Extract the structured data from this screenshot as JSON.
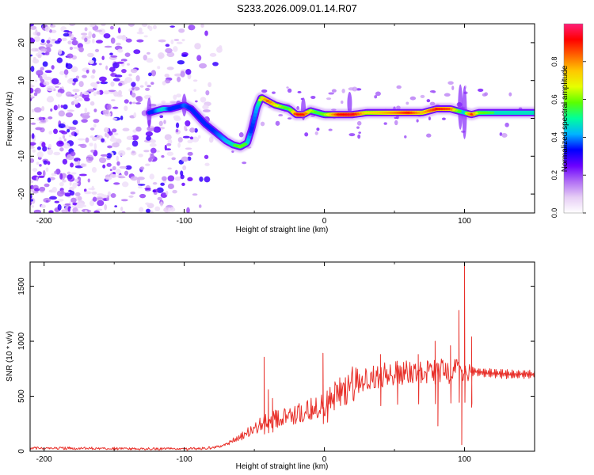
{
  "title": "S233.2026.009.01.14.R07",
  "chart_data": [
    {
      "type": "heatmap",
      "title": "S233.2026.009.01.14.R07",
      "xlabel": "Height of straight line (km)",
      "ylabel": "Frequency (Hz)",
      "xlim": [
        -210,
        150
      ],
      "ylim": [
        -25,
        25
      ],
      "xticks": [
        -200,
        -100,
        0,
        100
      ],
      "yticks": [
        -20,
        -10,
        0,
        10,
        20
      ],
      "colorbar": {
        "label": "Normalized spectral amplitude",
        "range": [
          0.0,
          1.0
        ],
        "ticks": [
          "0.0",
          "0.2",
          "0.4",
          "0.6",
          "0.8"
        ],
        "colormap": [
          "#ffffff",
          "#e6cdf5",
          "#b06df5",
          "#6b00ff",
          "#0000ff",
          "#00b4ff",
          "#00ff9c",
          "#5aff00",
          "#e6ff00",
          "#ffc800",
          "#ff6400",
          "#ff0000",
          "#ff1e78"
        ]
      },
      "ridge": {
        "x": [
          -125,
          -120,
          -115,
          -110,
          -105,
          -100,
          -95,
          -90,
          -85,
          -80,
          -75,
          -70,
          -65,
          -60,
          -55,
          -52,
          -48,
          -45,
          -40,
          -35,
          -30,
          -25,
          -20,
          -15,
          -10,
          -5,
          0,
          10,
          20,
          30,
          40,
          50,
          60,
          70,
          80,
          90,
          95,
          100,
          105,
          110,
          120,
          130,
          140,
          150
        ],
        "freq": [
          1.5,
          2.0,
          2.5,
          2.5,
          3.0,
          3.5,
          2.5,
          0.5,
          -1.5,
          -3.0,
          -4.5,
          -6.0,
          -7.0,
          -7.5,
          -6.5,
          -3.0,
          3.0,
          5.5,
          4.5,
          3.5,
          3.0,
          2.5,
          1.0,
          1.0,
          2.0,
          1.5,
          1.0,
          1.0,
          1.0,
          1.5,
          1.5,
          1.5,
          1.5,
          1.5,
          2.5,
          2.5,
          2.0,
          1.5,
          1.0,
          1.5,
          1.5,
          1.5,
          1.5,
          1.5
        ],
        "amplitude": [
          0.3,
          0.45,
          0.55,
          0.4,
          0.35,
          0.45,
          0.4,
          0.35,
          0.35,
          0.4,
          0.45,
          0.5,
          0.55,
          0.6,
          0.55,
          0.4,
          0.5,
          0.7,
          0.85,
          0.7,
          0.6,
          0.55,
          0.9,
          0.9,
          0.65,
          0.55,
          0.6,
          0.9,
          0.95,
          0.7,
          0.75,
          0.8,
          0.9,
          0.75,
          0.9,
          0.85,
          0.6,
          0.5,
          0.9,
          0.6,
          0.55,
          0.55,
          0.55,
          0.55
        ]
      },
      "noise_region_km": [
        -210,
        -70
      ],
      "noise_amplitude": [
        0.05,
        0.3
      ]
    },
    {
      "type": "line",
      "xlabel": "Height of straight line (km)",
      "ylabel": "SNR (10 * v/v)",
      "xlim": [
        -210,
        150
      ],
      "ylim": [
        0,
        1720
      ],
      "xticks": [
        -200,
        -100,
        0,
        100
      ],
      "yticks": [
        0,
        500,
        1000,
        1500
      ],
      "color": "#e8302a",
      "envelope": {
        "x": [
          -210,
          -150,
          -100,
          -80,
          -70,
          -60,
          -55,
          -50,
          -45,
          -40,
          -30,
          -20,
          -10,
          0,
          10,
          20,
          30,
          40,
          50,
          60,
          70,
          80,
          90,
          95,
          100,
          103,
          110,
          120,
          130,
          140,
          150
        ],
        "y": [
          30,
          25,
          20,
          30,
          60,
          130,
          170,
          210,
          250,
          280,
          310,
          340,
          380,
          420,
          520,
          600,
          650,
          690,
          710,
          710,
          720,
          720,
          730,
          740,
          740,
          730,
          720,
          710,
          700,
          700,
          700
        ]
      },
      "spikes": [
        {
          "x": -43,
          "y": 855
        },
        {
          "x": -40,
          "y": 560
        },
        {
          "x": -37,
          "y": 480
        },
        {
          "x": -1,
          "y": 890
        },
        {
          "x": 2,
          "y": 510
        },
        {
          "x": 40,
          "y": 880
        },
        {
          "x": 52,
          "y": 820
        },
        {
          "x": 67,
          "y": 880
        },
        {
          "x": 79,
          "y": 1000
        },
        {
          "x": 90,
          "y": 960
        },
        {
          "x": 96,
          "y": 1280
        },
        {
          "x": 100,
          "y": 1720
        },
        {
          "x": 105,
          "y": 1040
        }
      ],
      "dips": [
        {
          "x": 81,
          "y": 230
        },
        {
          "x": 98,
          "y": 60
        },
        {
          "x": 105,
          "y": 400
        }
      ]
    }
  ]
}
